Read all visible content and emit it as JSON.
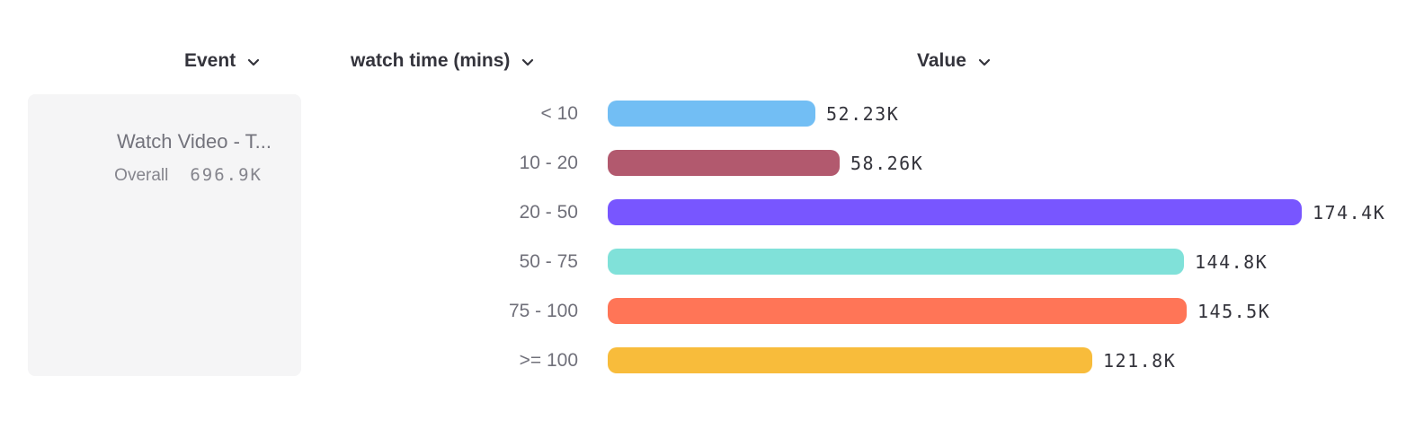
{
  "columns": {
    "event": {
      "label": "Event"
    },
    "breakdown": {
      "label": "watch time (mins)"
    },
    "value": {
      "label": "Value"
    }
  },
  "legend": {
    "event_name": "Watch Video - T...",
    "overall_label": "Overall",
    "overall_value": "696.9K"
  },
  "icons": {
    "header_dropdown": "chevron-down-icon"
  },
  "colors": {
    "header_text": "#34343c",
    "category_text": "#70707a",
    "value_text": "#33333b",
    "card_background": "#f5f5f6",
    "card_title_text": "#73737c",
    "card_overall_text": "#85858d"
  },
  "chart_data": {
    "type": "bar",
    "orientation": "horizontal",
    "title": "",
    "xlabel": "Value",
    "ylabel": "watch time (mins)",
    "unit": "K",
    "categories": [
      "< 10",
      "10 - 20",
      "20 - 50",
      "50 - 75",
      "75 - 100",
      ">= 100"
    ],
    "values": [
      52.23,
      58.26,
      174.4,
      144.8,
      145.5,
      121.8
    ],
    "value_labels": [
      "52.23K",
      "58.26K",
      "174.4K",
      "144.8K",
      "145.5K",
      "121.8K"
    ],
    "bar_colors": [
      "#72BEF4",
      "#B2596E",
      "#7856FF",
      "#80E1D9",
      "#FF7557",
      "#F8BC3B"
    ],
    "overall_total_label": "696.9K",
    "grid": false,
    "axis_range": [
      0,
      174.4
    ]
  }
}
